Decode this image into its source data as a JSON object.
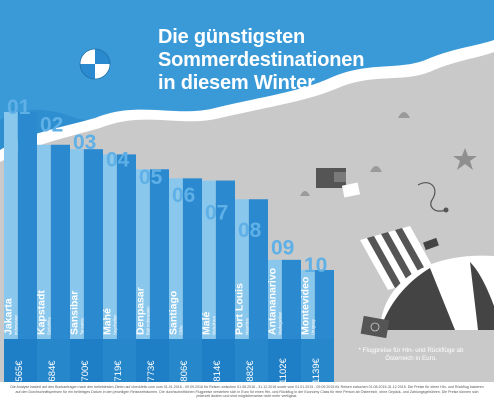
{
  "title": {
    "line1": "Die günstigsten",
    "line2": "Sommerdestinationen",
    "line3": "in diesem Winter"
  },
  "chart_data": {
    "type": "bar",
    "unit": "€",
    "categories": [
      "Jakarta",
      "Kapstadt",
      "Sansibar",
      "Mahé",
      "Denpasar",
      "Santiago",
      "Malé",
      "Port Louis",
      "Antananarivo",
      "Montevideo"
    ],
    "subtitles": [
      "Indonesien",
      "Südafrika",
      "Tansania",
      "Seychellen",
      "Bali Indonesien",
      "Chile",
      "Malediven",
      "Mauritius",
      "Madagaskar",
      "Uruguay"
    ],
    "ranks": [
      "01",
      "02",
      "03",
      "04",
      "05",
      "06",
      "07",
      "08",
      "09",
      "10"
    ],
    "values": [
      565,
      684,
      700,
      719,
      773,
      806,
      814,
      882,
      1102,
      1139
    ],
    "value_labels": [
      "565€",
      "684€",
      "700€",
      "719€",
      "773€",
      "806€",
      "814€",
      "882€",
      "1102€",
      "1139€"
    ]
  },
  "note": "* Flugpreise für Hin- und Rückflüge ab Österreich in Euro.",
  "footnote": "Die Analyse basiert auf den Buchanfragen nach den beliebtesten Zielen auf checkfelix.com vom 01.01.2016 - 09.09.2016 für Reisen zwischen 01.08.2016 - 31.12.2016 sowie vom 01.01.2015 - 09.09.2015 für Reisen zwischen 01.08.2015-31.12.2015. Die Preise für einen Hin- und Rückflug basieren auf den Durchschnittspreisen für ein beliebiges Datum in den jeweiligen Reisezeiträumen. Die durchschnittlichen Flugpreise verstehen sich in Euro für einen Hin- und Rückflug in der Economy Class für eine Person ab Österreich, ohne Gepäck- und Zahlungsgebühren. Die Preise können sich jederzeit ändern und sind möglicherweise nicht mehr verfügbar.",
  "colors": {
    "sky": "#2e8fd0",
    "bar_light": "#8ac7ec",
    "bar_dark": "#2b89cf",
    "sand": "#c9c9c9",
    "foam": "#ffffff",
    "price_row": "#1f7fc6"
  }
}
